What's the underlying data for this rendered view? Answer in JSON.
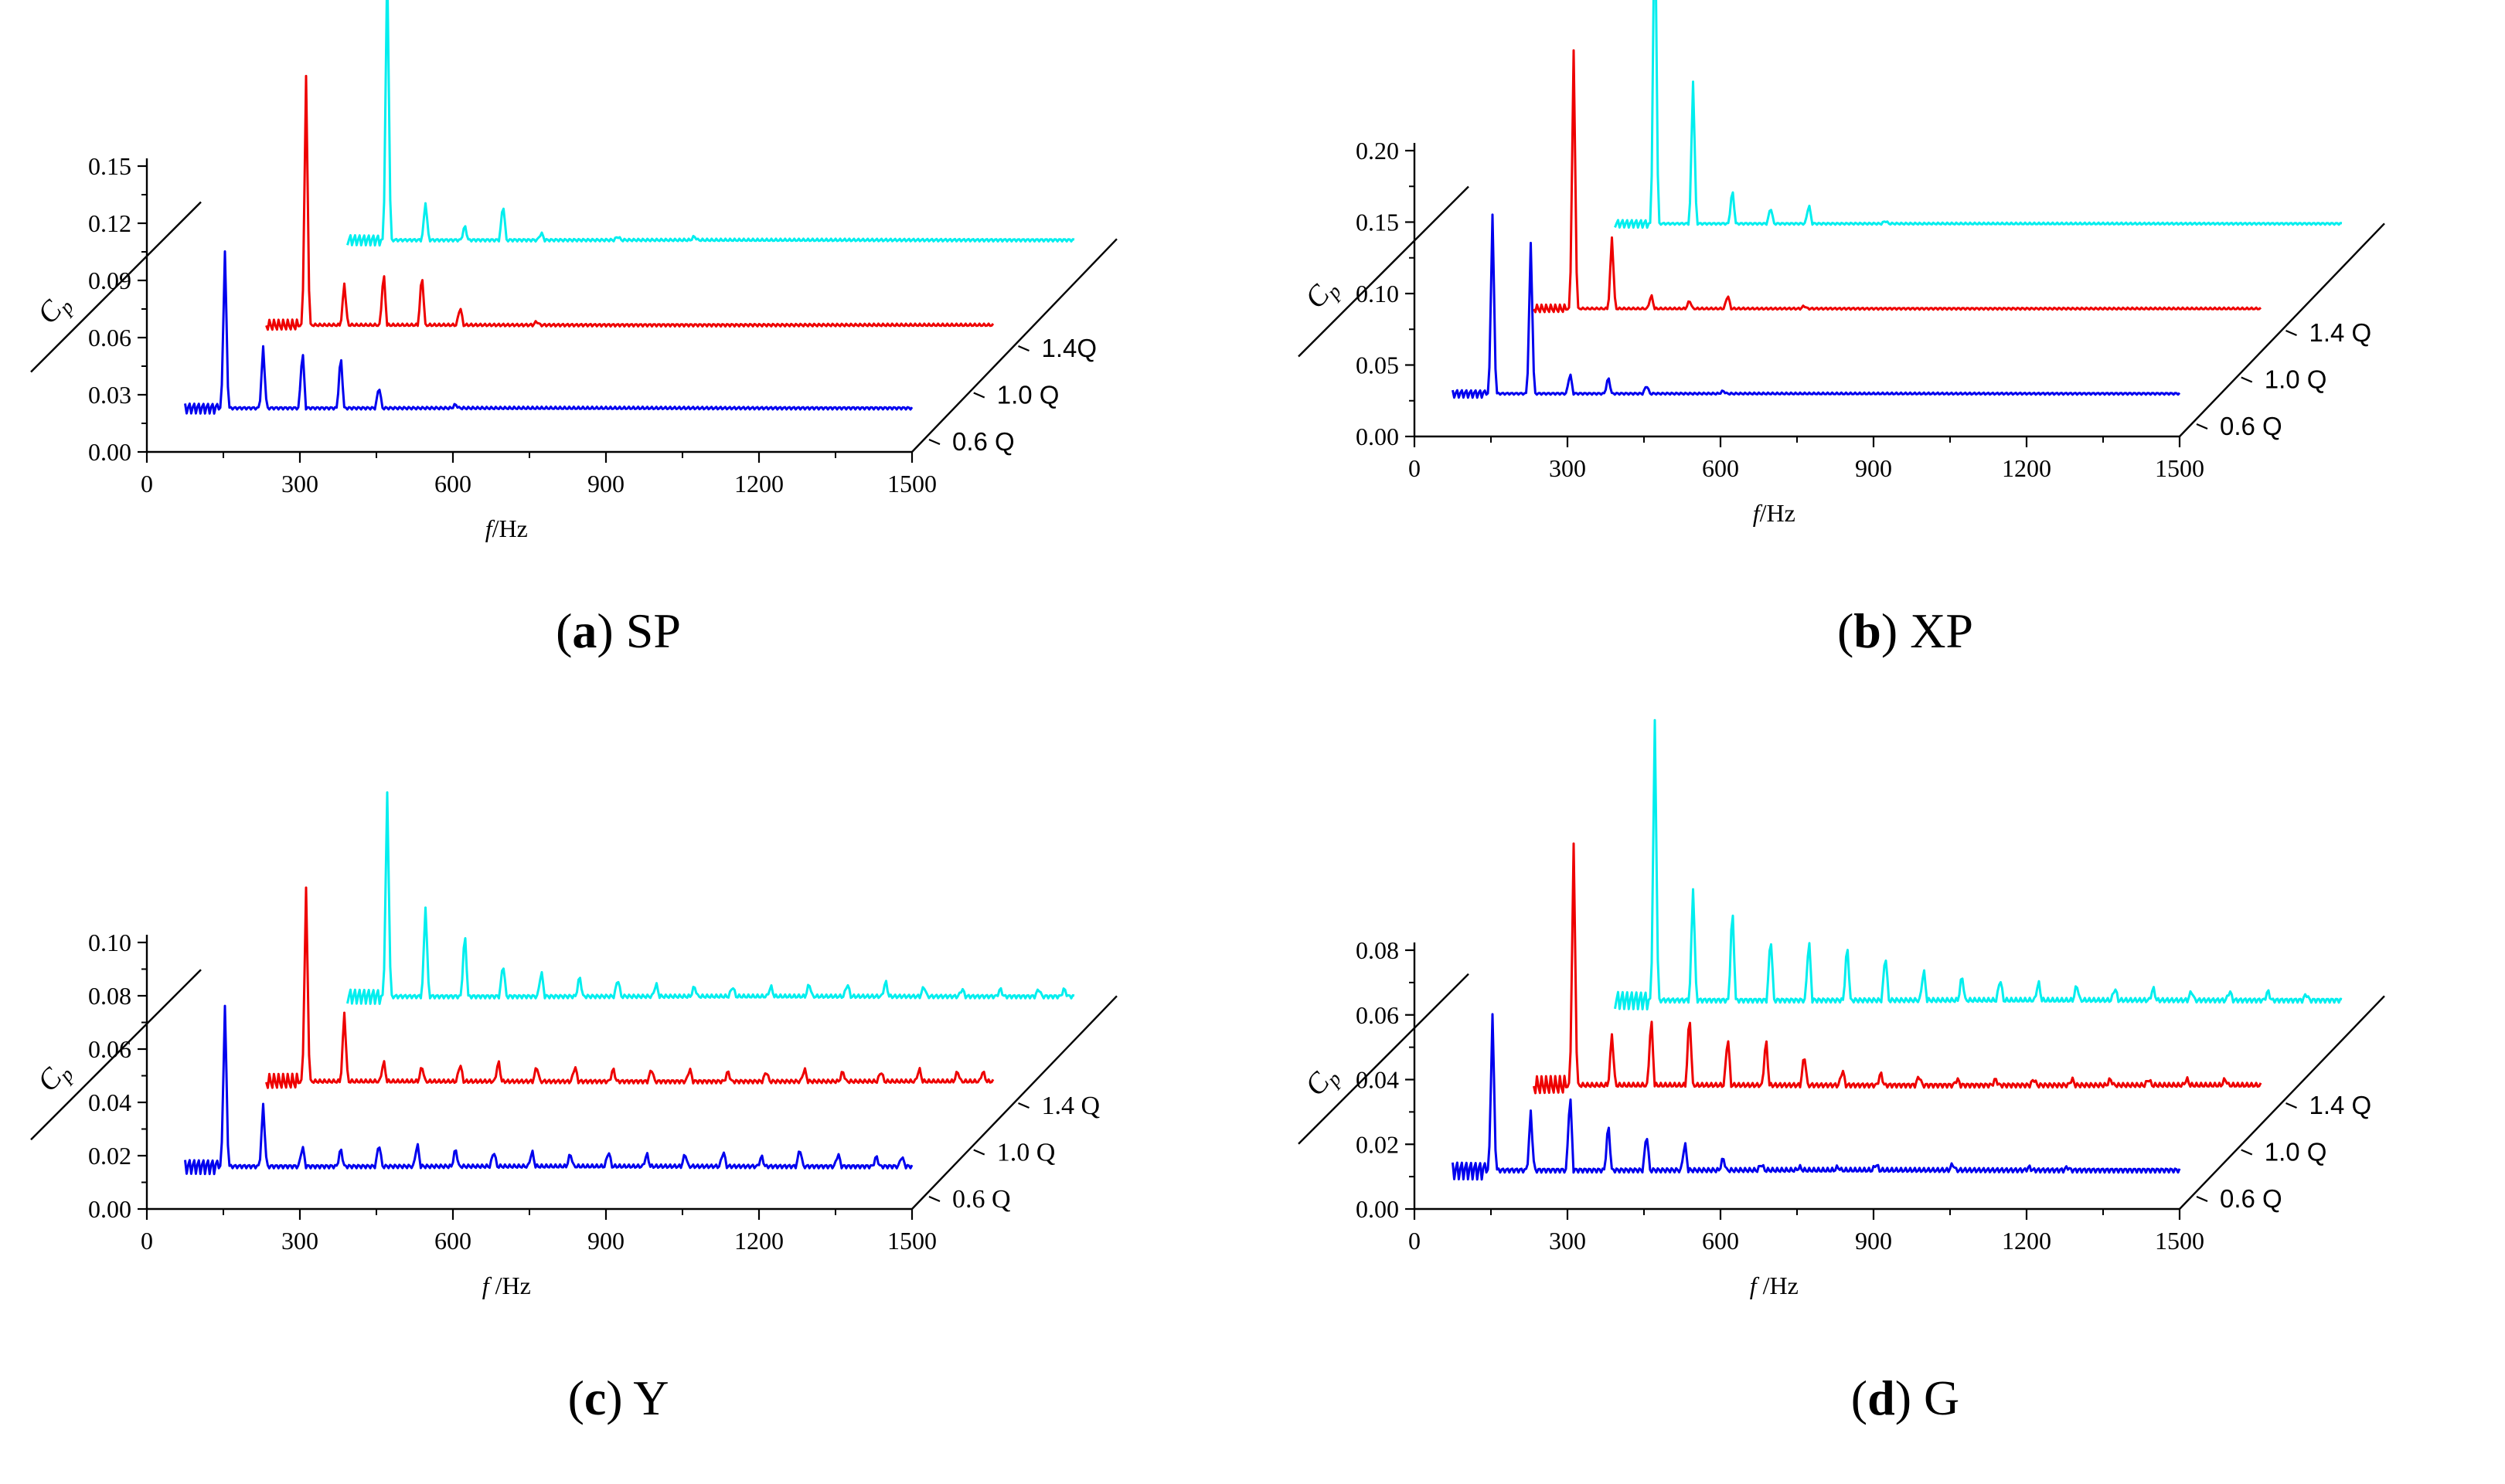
{
  "captions": [
    {
      "letter": "a",
      "open": "(",
      "close": ")",
      "name": "SP"
    },
    {
      "letter": "b",
      "open": "(",
      "close": ")",
      "name": "XP"
    },
    {
      "letter": "c",
      "open": "(",
      "close": ")",
      "name": "Y"
    },
    {
      "letter": "d",
      "open": "(",
      "close": ")",
      "name": "G"
    }
  ],
  "colors": {
    "0.6 Q": "#0000ee",
    "1.0 Q": "#ee0000",
    "1.4 Q": "#00eeee",
    "axis": "#000000"
  },
  "chart_data": [
    {
      "type": "line",
      "title": "SP",
      "xlabel_italic": "f",
      "xlabel_unit": "/Hz",
      "ylabel_main": "C",
      "ylabel_sub": "p",
      "xlim": [
        0,
        1500
      ],
      "ylim": [
        0,
        0.15
      ],
      "xticks": [
        "0",
        "300",
        "600",
        "900",
        "1200",
        "1500"
      ],
      "yticks": [
        "0.00",
        "0.03",
        "0.06",
        "0.09",
        "0.12",
        "0.15"
      ],
      "series": [
        {
          "name": "0.6 Q",
          "baseline": 0.023,
          "fstart": 75,
          "peaks": [
            [
              153,
              0.082
            ],
            [
              228,
              0.032
            ],
            [
              305,
              0.032
            ],
            [
              380,
              0.029
            ],
            [
              455,
              0.012
            ],
            [
              605,
              0.002
            ]
          ]
        },
        {
          "name": "1.0 Q",
          "baseline": 0.022,
          "fstart": 75,
          "peaks": [
            [
              153,
              0.13
            ],
            [
              228,
              0.022
            ],
            [
              305,
              0.029
            ],
            [
              380,
              0.028
            ],
            [
              455,
              0.01
            ],
            [
              605,
              0.002
            ]
          ]
        },
        {
          "name": "1.4Q",
          "baseline": 0.022,
          "fstart": 75,
          "peaks": [
            [
              153,
              0.145
            ],
            [
              228,
              0.02
            ],
            [
              305,
              0.008
            ],
            [
              380,
              0.02
            ],
            [
              455,
              0.004
            ],
            [
              605,
              0.002
            ],
            [
              755,
              0.002
            ]
          ]
        }
      ]
    },
    {
      "type": "line",
      "title": "XP",
      "xlabel_italic": "f",
      "xlabel_unit": "/Hz",
      "ylabel_main": "C",
      "ylabel_sub": "p",
      "xlim": [
        0,
        1500
      ],
      "ylim": [
        0,
        0.2
      ],
      "xticks": [
        "0",
        "300",
        "600",
        "900",
        "1200",
        "1500"
      ],
      "yticks": [
        "0.00",
        "0.05",
        "0.10",
        "0.15",
        "0.20"
      ],
      "series": [
        {
          "name": "0.6 Q",
          "baseline": 0.03,
          "fstart": 75,
          "peaks": [
            [
              153,
              0.125
            ],
            [
              228,
              0.105
            ],
            [
              305,
              0.015
            ],
            [
              380,
              0.012
            ],
            [
              455,
              0.006
            ],
            [
              605,
              0.002
            ]
          ]
        },
        {
          "name": "1.0 Q",
          "baseline": 0.03,
          "fstart": 75,
          "peaks": [
            [
              153,
              0.18
            ],
            [
              228,
              0.05
            ],
            [
              305,
              0.01
            ],
            [
              380,
              0.006
            ],
            [
              455,
              0.01
            ],
            [
              605,
              0.002
            ]
          ]
        },
        {
          "name": "1.4 Q",
          "baseline": 0.03,
          "fstart": 75,
          "peaks": [
            [
              153,
              0.24
            ],
            [
              228,
              0.1
            ],
            [
              305,
              0.025
            ],
            [
              380,
              0.012
            ],
            [
              455,
              0.014
            ],
            [
              605,
              0.002
            ]
          ]
        }
      ]
    },
    {
      "type": "line",
      "title": "Y",
      "xlabel_italic": "f",
      "xlabel_unit": " /Hz",
      "ylabel_main": "C",
      "ylabel_sub": "p",
      "xlim": [
        0,
        1500
      ],
      "ylim": [
        0,
        0.1
      ],
      "xticks": [
        "0",
        "300",
        "600",
        "900",
        "1200",
        "1500"
      ],
      "yticks": [
        "0.00",
        "0.02",
        "0.04",
        "0.06",
        "0.08",
        "0.10"
      ],
      "series": [
        {
          "name": "0.6 Q",
          "baseline": 0.016,
          "fstart": 75,
          "peaks": [
            [
              153,
              0.06
            ],
            [
              228,
              0.023
            ],
            [
              305,
              0.008
            ],
            [
              380,
              0.007
            ],
            [
              455,
              0.009
            ],
            [
              530,
              0.009
            ],
            [
              605,
              0.007
            ],
            [
              680,
              0.006
            ],
            [
              755,
              0.006
            ],
            [
              830,
              0.005
            ],
            [
              905,
              0.006
            ],
            [
              980,
              0.005
            ],
            [
              1055,
              0.005
            ],
            [
              1130,
              0.006
            ],
            [
              1205,
              0.004
            ],
            [
              1280,
              0.007
            ],
            [
              1355,
              0.005
            ],
            [
              1430,
              0.004
            ],
            [
              1480,
              0.004
            ]
          ]
        },
        {
          "name": "1.0 Q",
          "baseline": 0.016,
          "fstart": 75,
          "peaks": [
            [
              153,
              0.072
            ],
            [
              228,
              0.026
            ],
            [
              305,
              0.008
            ],
            [
              380,
              0.006
            ],
            [
              455,
              0.007
            ],
            [
              530,
              0.008
            ],
            [
              605,
              0.006
            ],
            [
              680,
              0.006
            ],
            [
              755,
              0.005
            ],
            [
              830,
              0.005
            ],
            [
              905,
              0.005
            ],
            [
              980,
              0.004
            ],
            [
              1055,
              0.004
            ],
            [
              1130,
              0.005
            ],
            [
              1205,
              0.004
            ],
            [
              1280,
              0.004
            ],
            [
              1355,
              0.005
            ],
            [
              1430,
              0.004
            ],
            [
              1480,
              0.004
            ]
          ]
        },
        {
          "name": "1.4 Q",
          "baseline": 0.016,
          "fstart": 75,
          "peaks": [
            [
              153,
              0.076
            ],
            [
              228,
              0.034
            ],
            [
              305,
              0.025
            ],
            [
              380,
              0.013
            ],
            [
              455,
              0.01
            ],
            [
              530,
              0.008
            ],
            [
              605,
              0.007
            ],
            [
              680,
              0.005
            ],
            [
              755,
              0.004
            ],
            [
              830,
              0.004
            ],
            [
              905,
              0.004
            ],
            [
              980,
              0.005
            ],
            [
              1055,
              0.005
            ],
            [
              1130,
              0.006
            ],
            [
              1205,
              0.004
            ],
            [
              1280,
              0.003
            ],
            [
              1355,
              0.003
            ],
            [
              1430,
              0.003
            ],
            [
              1480,
              0.003
            ]
          ]
        }
      ]
    },
    {
      "type": "line",
      "title": "G",
      "xlabel_italic": "f",
      "xlabel_unit": " /Hz",
      "ylabel_main": "C",
      "ylabel_sub": "p",
      "xlim": [
        0,
        1500
      ],
      "ylim": [
        0,
        0.08
      ],
      "xticks": [
        "0",
        "300",
        "600",
        "900",
        "1200",
        "1500"
      ],
      "yticks": [
        "0.00",
        "0.02",
        "0.04",
        "0.06",
        "0.08"
      ],
      "series": [
        {
          "name": "0.6 Q",
          "baseline": 0.012,
          "fstart": 75,
          "peaks": [
            [
              153,
              0.048
            ],
            [
              228,
              0.018
            ],
            [
              305,
              0.025
            ],
            [
              380,
              0.015
            ],
            [
              455,
              0.012
            ],
            [
              530,
              0.009
            ],
            [
              605,
              0.004
            ],
            [
              680,
              0.002
            ],
            [
              755,
              0.001
            ],
            [
              830,
              0.001
            ],
            [
              905,
              0.002
            ],
            [
              1055,
              0.002
            ],
            [
              1205,
              0.001
            ],
            [
              1280,
              0.001
            ]
          ]
        },
        {
          "name": "1.0 Q",
          "baseline": 0.012,
          "fstart": 75,
          "peaks": [
            [
              153,
              0.074
            ],
            [
              228,
              0.016
            ],
            [
              305,
              0.022
            ],
            [
              380,
              0.023
            ],
            [
              455,
              0.016
            ],
            [
              530,
              0.015
            ],
            [
              605,
              0.01
            ],
            [
              680,
              0.005
            ],
            [
              755,
              0.004
            ],
            [
              830,
              0.003
            ],
            [
              905,
              0.002
            ],
            [
              980,
              0.002
            ],
            [
              1055,
              0.002
            ],
            [
              1130,
              0.002
            ],
            [
              1205,
              0.002
            ],
            [
              1280,
              0.002
            ],
            [
              1355,
              0.002
            ],
            [
              1430,
              0.002
            ]
          ]
        },
        {
          "name": "1.4 Q",
          "baseline": 0.012,
          "fstart": 75,
          "peaks": [
            [
              153,
              0.086
            ],
            [
              228,
              0.035
            ],
            [
              305,
              0.03
            ],
            [
              380,
              0.021
            ],
            [
              455,
              0.02
            ],
            [
              530,
              0.018
            ],
            [
              605,
              0.015
            ],
            [
              680,
              0.01
            ],
            [
              755,
              0.008
            ],
            [
              830,
              0.007
            ],
            [
              905,
              0.006
            ],
            [
              980,
              0.005
            ],
            [
              1055,
              0.004
            ],
            [
              1130,
              0.004
            ],
            [
              1205,
              0.003
            ],
            [
              1280,
              0.003
            ],
            [
              1355,
              0.003
            ],
            [
              1430,
              0.002
            ]
          ]
        }
      ]
    }
  ]
}
